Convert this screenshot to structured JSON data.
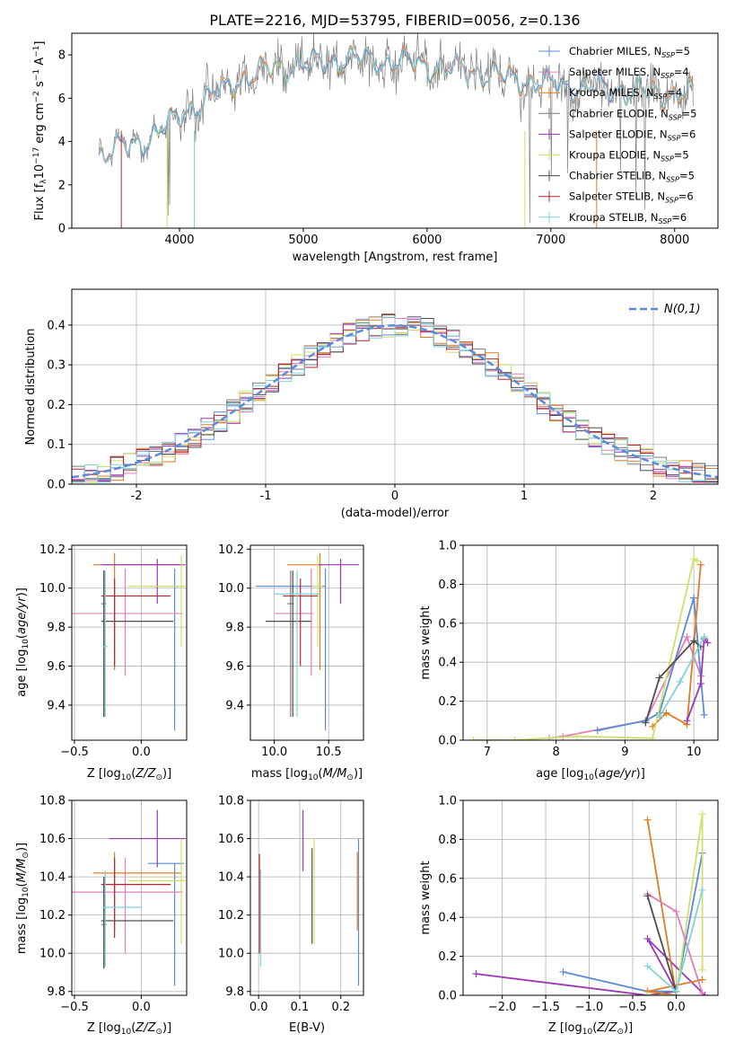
{
  "page": {
    "title": "PLATE=2216, MJD=53795, FIBERID=0056, z=0.136"
  },
  "colors": {
    "chabrier_miles": "#5b8bd8",
    "salpeter_miles": "#e27fb6",
    "kroupa_miles": "#e07b26",
    "chabrier_elodie": "#7a7a7a",
    "salpeter_elodie": "#9a36b8",
    "kroupa_elodie": "#cfe06a",
    "chabrier_stelib": "#4d4d4d",
    "salpeter_stelib": "#b8262d",
    "kroupa_stelib": "#7fd2da",
    "normal": "#5b8bd8",
    "grid": "#b0b0b0"
  },
  "chart_data": [
    {
      "id": "spectrum",
      "type": "line",
      "xlabel": "wavelength [Angstrom, rest frame]",
      "ylabel": "Flux [f_λ 10^-17 erg cm^-2 s^-1 A^-1]",
      "xlim": [
        3130,
        8350
      ],
      "ylim": [
        0,
        9
      ],
      "xticks": [
        4000,
        5000,
        6000,
        7000,
        8000
      ],
      "yticks": [
        0,
        2,
        4,
        6,
        8
      ],
      "grid": false,
      "legend_position": "top-right",
      "legend": [
        {
          "label": "Chabrier MILES, N",
          "sub": "SSP",
          "tail": "=5",
          "color_key": "chabrier_miles"
        },
        {
          "label": "Salpeter MILES, N",
          "sub": "SSP",
          "tail": "=4",
          "color_key": "salpeter_miles"
        },
        {
          "label": "Kroupa MILES, N",
          "sub": "SSP",
          "tail": "=4",
          "color_key": "kroupa_miles"
        },
        {
          "label": "Chabrier ELODIE, N",
          "sub": "SSP",
          "tail": "=5",
          "color_key": "chabrier_elodie"
        },
        {
          "label": "Salpeter ELODIE, N",
          "sub": "SSP",
          "tail": "=6",
          "color_key": "salpeter_elodie"
        },
        {
          "label": "Kroupa ELODIE, N",
          "sub": "SSP",
          "tail": "=5",
          "color_key": "kroupa_elodie"
        },
        {
          "label": "Chabrier STELIB, N",
          "sub": "SSP",
          "tail": "=5",
          "color_key": "chabrier_stelib"
        },
        {
          "label": "Salpeter STELIB, N",
          "sub": "SSP",
          "tail": "=6",
          "color_key": "salpeter_stelib"
        },
        {
          "label": "Kroupa STELIB, N",
          "sub": "SSP",
          "tail": "=6",
          "color_key": "kroupa_stelib"
        }
      ],
      "continuum": [
        [
          3350,
          3.4
        ],
        [
          3500,
          3.7
        ],
        [
          3650,
          3.8
        ],
        [
          3800,
          4.4
        ],
        [
          3950,
          4.9
        ],
        [
          4100,
          5.6
        ],
        [
          4300,
          6.2
        ],
        [
          4500,
          6.9
        ],
        [
          4700,
          7.3
        ],
        [
          4900,
          7.5
        ],
        [
          5100,
          7.6
        ],
        [
          5300,
          7.8
        ],
        [
          5500,
          7.8
        ],
        [
          5700,
          7.7
        ],
        [
          5900,
          7.6
        ],
        [
          6100,
          7.4
        ],
        [
          6300,
          7.3
        ],
        [
          6500,
          7.1
        ],
        [
          6700,
          6.9
        ],
        [
          6900,
          6.7
        ],
        [
          7100,
          6.6
        ],
        [
          7300,
          6.5
        ],
        [
          7500,
          6.4
        ],
        [
          7700,
          6.3
        ],
        [
          7900,
          6.2
        ],
        [
          8100,
          6.2
        ]
      ]
    },
    {
      "id": "histogram",
      "type": "bar",
      "xlabel": "(data-model)/error",
      "ylabel": "Normed distribution",
      "xlim": [
        -2.5,
        2.5
      ],
      "ylim": [
        0,
        0.49
      ],
      "xticks": [
        -2,
        -1,
        0,
        1,
        2
      ],
      "yticks": [
        0.0,
        0.1,
        0.2,
        0.3,
        0.4
      ],
      "grid": true,
      "legend_position": "top-right",
      "legend_label": "N(0,1)",
      "bin_width": 0.1,
      "series_keys": [
        "chabrier_miles",
        "salpeter_miles",
        "kroupa_miles",
        "chabrier_elodie",
        "salpeter_elodie",
        "kroupa_elodie",
        "chabrier_stelib",
        "salpeter_stelib",
        "kroupa_stelib"
      ]
    },
    {
      "id": "age-vs-z",
      "type": "scatter",
      "xlabel": "Z [log10(Z/Z⊙)]",
      "ylabel": "age [log10(age/yr)]",
      "xlim": [
        -0.52,
        0.34
      ],
      "ylim": [
        9.22,
        10.22
      ],
      "xticks": [
        -0.5,
        0.0
      ],
      "yticks": [
        9.4,
        9.6,
        9.8,
        10.0,
        10.2
      ],
      "grid": true,
      "points": [
        {
          "key": "chabrier_miles",
          "x": 0.25,
          "xlo": 0.05,
          "xhi": 0.32,
          "y": 10.01,
          "ylo": 9.27,
          "yhi": 10.1
        },
        {
          "key": "salpeter_miles",
          "x": -0.12,
          "xlo": -0.52,
          "xhi": 0.31,
          "y": 9.87,
          "ylo": 9.55,
          "yhi": 10.1
        },
        {
          "key": "kroupa_miles",
          "x": -0.2,
          "xlo": -0.36,
          "xhi": 0.3,
          "y": 10.12,
          "ylo": 9.58,
          "yhi": 10.18
        },
        {
          "key": "chabrier_elodie",
          "x": -0.28,
          "xlo": -0.3,
          "xhi": -0.26,
          "y": 9.92,
          "ylo": 9.34,
          "yhi": 10.09
        },
        {
          "key": "salpeter_elodie",
          "x": 0.12,
          "xlo": -0.3,
          "xhi": 0.33,
          "y": 10.12,
          "ylo": 9.92,
          "yhi": 10.15
        },
        {
          "key": "kroupa_elodie",
          "x": 0.3,
          "xlo": -0.1,
          "xhi": 0.33,
          "y": 10.01,
          "ylo": 9.7,
          "yhi": 10.17
        },
        {
          "key": "chabrier_stelib",
          "x": -0.28,
          "xlo": -0.3,
          "xhi": 0.24,
          "y": 9.83,
          "ylo": 9.34,
          "yhi": 10.09
        },
        {
          "key": "salpeter_stelib",
          "x": -0.2,
          "xlo": -0.3,
          "xhi": 0.22,
          "y": 9.96,
          "ylo": 9.6,
          "yhi": 10.05
        },
        {
          "key": "kroupa_stelib",
          "x": -0.27,
          "xlo": -0.29,
          "xhi": -0.25,
          "y": 9.7,
          "ylo": 9.34,
          "yhi": 10.09
        }
      ]
    },
    {
      "id": "age-vs-mass",
      "type": "scatter",
      "xlabel": "mass [log10(M/M⊙)]",
      "ylabel": "",
      "xlim": [
        9.78,
        10.82
      ],
      "ylim": [
        9.22,
        10.22
      ],
      "xticks": [
        10.0,
        10.5
      ],
      "yticks": [
        9.4,
        9.6,
        9.8,
        10.0,
        10.2
      ],
      "grid": true,
      "points": [
        {
          "key": "chabrier_miles",
          "x": 10.47,
          "xlo": 9.83,
          "xhi": 10.47,
          "y": 10.01,
          "ylo": 9.27,
          "yhi": 10.1
        },
        {
          "key": "salpeter_miles",
          "x": 10.34,
          "xlo": 10.0,
          "xhi": 10.36,
          "y": 9.87,
          "ylo": 9.55,
          "yhi": 10.1
        },
        {
          "key": "kroupa_miles",
          "x": 10.42,
          "xlo": 10.12,
          "xhi": 10.44,
          "y": 10.12,
          "ylo": 9.58,
          "yhi": 10.18
        },
        {
          "key": "chabrier_elodie",
          "x": 10.15,
          "xlo": 10.12,
          "xhi": 10.18,
          "y": 9.92,
          "ylo": 9.34,
          "yhi": 10.09
        },
        {
          "key": "salpeter_elodie",
          "x": 10.61,
          "xlo": 10.4,
          "xhi": 10.78,
          "y": 10.12,
          "ylo": 9.92,
          "yhi": 10.15
        },
        {
          "key": "kroupa_elodie",
          "x": 10.4,
          "xlo": 10.35,
          "xhi": 10.44,
          "y": 10.01,
          "ylo": 9.7,
          "yhi": 10.17
        },
        {
          "key": "chabrier_stelib",
          "x": 10.17,
          "xlo": 9.92,
          "xhi": 10.34,
          "y": 9.83,
          "ylo": 9.34,
          "yhi": 10.09
        },
        {
          "key": "salpeter_stelib",
          "x": 10.24,
          "xlo": 10.08,
          "xhi": 10.4,
          "y": 9.96,
          "ylo": 9.6,
          "yhi": 10.05
        },
        {
          "key": "kroupa_stelib",
          "x": 10.21,
          "xlo": 10.0,
          "xhi": 10.42,
          "y": 9.97,
          "ylo": 9.34,
          "yhi": 10.09
        }
      ]
    },
    {
      "id": "weight-vs-age",
      "type": "line",
      "xlabel": "age [log10(age/yr)]",
      "ylabel": "mass weight",
      "xlim": [
        6.65,
        10.35
      ],
      "ylim": [
        0,
        1.0
      ],
      "xticks": [
        7,
        8,
        9,
        10
      ],
      "yticks": [
        0.0,
        0.2,
        0.4,
        0.6,
        0.8,
        1.0
      ],
      "grid": true,
      "series": [
        {
          "key": "salpeter_miles",
          "x": [
            7.9,
            8.1,
            9.3,
            9.9,
            10.1
          ],
          "y": [
            0.01,
            0.02,
            0.1,
            0.53,
            0.33
          ]
        },
        {
          "key": "chabrier_miles",
          "x": [
            8.6,
            9.3,
            9.5,
            10.0,
            10.15
          ],
          "y": [
            0.05,
            0.1,
            0.14,
            0.73,
            0.13
          ]
        },
        {
          "key": "kroupa_miles",
          "x": [
            9.4,
            9.6,
            9.9,
            10.1
          ],
          "y": [
            0.07,
            0.14,
            0.08,
            0.9
          ]
        },
        {
          "key": "kroupa_elodie",
          "x": [
            6.8,
            7.4,
            8.3,
            9.4,
            10.0,
            10.05
          ],
          "y": [
            0.0,
            0.0,
            0.02,
            0.01,
            0.93,
            0.92
          ]
        },
        {
          "key": "chabrier_stelib",
          "x": [
            9.3,
            9.5,
            10.0,
            10.1
          ],
          "y": [
            0.09,
            0.32,
            0.51,
            0.48
          ]
        },
        {
          "key": "salpeter_elodie",
          "x": [
            9.9,
            10.1,
            10.15,
            10.2
          ],
          "y": [
            0.1,
            0.29,
            0.52,
            0.5
          ]
        },
        {
          "key": "kroupa_stelib",
          "x": [
            9.5,
            9.8,
            10.15
          ],
          "y": [
            0.12,
            0.3,
            0.53
          ]
        }
      ]
    },
    {
      "id": "mass-vs-z",
      "type": "scatter",
      "xlabel": "Z [log10(Z/Z⊙)]",
      "ylabel": "mass [log10(M/M⊙)]",
      "xlim": [
        -0.52,
        0.34
      ],
      "ylim": [
        9.78,
        10.8
      ],
      "xticks": [
        -0.5,
        0.0
      ],
      "yticks": [
        9.8,
        10.0,
        10.2,
        10.4,
        10.6,
        10.8
      ],
      "grid": true,
      "points": [
        {
          "key": "chabrier_miles",
          "x": 0.25,
          "xlo": 0.05,
          "xhi": 0.32,
          "y": 10.47,
          "ylo": 9.83,
          "yhi": 10.47
        },
        {
          "key": "salpeter_miles",
          "x": -0.12,
          "xlo": -0.52,
          "xhi": 0.31,
          "y": 10.32,
          "ylo": 10.0,
          "yhi": 10.5
        },
        {
          "key": "kroupa_miles",
          "x": -0.2,
          "xlo": -0.36,
          "xhi": 0.3,
          "y": 10.42,
          "ylo": 10.12,
          "yhi": 10.53
        },
        {
          "key": "chabrier_elodie",
          "x": -0.28,
          "xlo": -0.3,
          "xhi": -0.26,
          "y": 10.15,
          "ylo": 9.92,
          "yhi": 10.4
        },
        {
          "key": "salpeter_elodie",
          "x": 0.12,
          "xlo": -0.24,
          "xhi": 0.33,
          "y": 10.6,
          "ylo": 10.45,
          "yhi": 10.75
        },
        {
          "key": "kroupa_elodie",
          "x": 0.3,
          "xlo": -0.1,
          "xhi": 0.33,
          "y": 10.38,
          "ylo": 10.05,
          "yhi": 10.6
        },
        {
          "key": "chabrier_stelib",
          "x": -0.28,
          "xlo": -0.3,
          "xhi": 0.24,
          "y": 10.17,
          "ylo": 9.92,
          "yhi": 10.4
        },
        {
          "key": "salpeter_stelib",
          "x": -0.2,
          "xlo": -0.3,
          "xhi": 0.22,
          "y": 10.36,
          "ylo": 10.08,
          "yhi": 10.5
        },
        {
          "key": "kroupa_stelib",
          "x": -0.27,
          "xlo": -0.29,
          "xhi": 0.0,
          "y": 10.24,
          "ylo": 9.93,
          "yhi": 10.43
        }
      ]
    },
    {
      "id": "mass-vs-ebv",
      "type": "scatter",
      "xlabel": "E(B-V)",
      "ylabel": "",
      "xlim": [
        -0.02,
        0.255
      ],
      "ylim": [
        9.78,
        10.8
      ],
      "xticks": [
        0.0,
        0.1,
        0.2
      ],
      "yticks": [
        9.8,
        10.0,
        10.2,
        10.4,
        10.6,
        10.8
      ],
      "grid": true,
      "points": [
        {
          "key": "chabrier_miles",
          "x": 0.243,
          "xlo": 0.243,
          "xhi": 0.243,
          "y": 10.47,
          "ylo": 9.83,
          "yhi": 10.6
        },
        {
          "key": "kroupa_miles",
          "x": 0.24,
          "xlo": 0.24,
          "xhi": 0.24,
          "y": 10.42,
          "ylo": 10.12,
          "yhi": 10.53
        },
        {
          "key": "salpeter_elodie",
          "x": 0.108,
          "xlo": 0.108,
          "xhi": 0.108,
          "y": 10.6,
          "ylo": 10.43,
          "yhi": 10.75
        },
        {
          "key": "kroupa_elodie",
          "x": 0.135,
          "xlo": 0.135,
          "xhi": 0.135,
          "y": 10.38,
          "ylo": 10.05,
          "yhi": 10.6
        },
        {
          "key": "chabrier_stelib",
          "x": 0.13,
          "xlo": 0.13,
          "xhi": 0.13,
          "y": 10.3,
          "ylo": 10.05,
          "yhi": 10.55
        },
        {
          "key": "salpeter_stelib",
          "x": 0.002,
          "xlo": 0.002,
          "xhi": 0.002,
          "y": 10.3,
          "ylo": 10.0,
          "yhi": 10.52
        },
        {
          "key": "kroupa_stelib",
          "x": 0.005,
          "xlo": 0.005,
          "xhi": 0.005,
          "y": 10.1,
          "ylo": 9.93,
          "yhi": 10.44
        }
      ]
    },
    {
      "id": "weight-vs-z",
      "type": "line",
      "xlabel": "Z [log10(Z/Z⊙)]",
      "ylabel": "mass weight",
      "xlim": [
        -2.45,
        0.48
      ],
      "ylim": [
        0,
        1.0
      ],
      "xticks": [
        -2.0,
        -1.5,
        -1.0,
        -0.5,
        0.0
      ],
      "yticks": [
        0.0,
        0.2,
        0.4,
        0.6,
        0.8,
        1.0
      ],
      "grid": true,
      "series": [
        {
          "key": "salpeter_elodie",
          "x": [
            -2.3,
            -0.33,
            0.0,
            -0.33,
            0.33
          ],
          "y": [
            0.11,
            0.0,
            0.02,
            0.29,
            0.0
          ]
        },
        {
          "key": "chabrier_miles",
          "x": [
            -1.3,
            -0.33,
            0.0,
            0.3
          ],
          "y": [
            0.12,
            0.02,
            0.02,
            0.73
          ]
        },
        {
          "key": "kroupa_miles",
          "x": [
            -0.33,
            0.0,
            -0.33,
            0.3
          ],
          "y": [
            0.9,
            0.0,
            0.02,
            0.08
          ]
        },
        {
          "key": "kroupa_elodie",
          "x": [
            -0.33,
            0.0,
            0.3,
            0.3
          ],
          "y": [
            0.0,
            0.0,
            0.93,
            0.13
          ]
        },
        {
          "key": "salpeter_miles",
          "x": [
            -0.33,
            0.0,
            0.3
          ],
          "y": [
            0.52,
            0.43,
            0.01
          ]
        },
        {
          "key": "chabrier_stelib",
          "x": [
            -0.33,
            0.0
          ],
          "y": [
            0.51,
            0.02
          ]
        },
        {
          "key": "kroupa_stelib",
          "x": [
            -0.33,
            0.0,
            0.3
          ],
          "y": [
            0.15,
            0.02,
            0.54
          ]
        }
      ]
    }
  ]
}
